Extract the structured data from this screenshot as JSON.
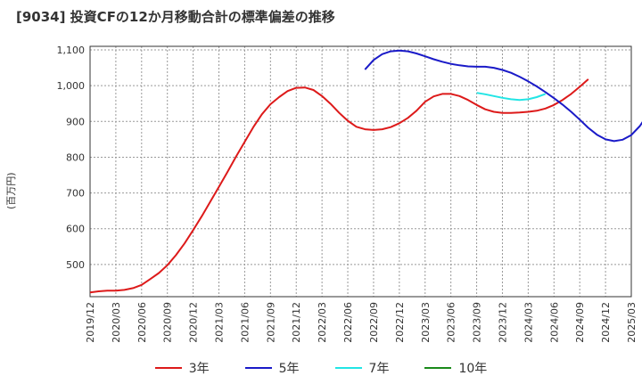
{
  "chart_data": {
    "type": "line",
    "title": "[9034]  投資CFの12か月移動合計の標準偏差の推移",
    "ylabel": "(百万円)",
    "xlabel": "",
    "ylim": [
      410,
      1110
    ],
    "yticks": [
      500,
      600,
      700,
      800,
      900,
      1000,
      1100
    ],
    "ytick_labels": [
      "500",
      "600",
      "700",
      "800",
      "900",
      "1,000",
      "1,100"
    ],
    "xticks": [
      "2019/12",
      "2020/03",
      "2020/06",
      "2020/09",
      "2020/12",
      "2021/03",
      "2021/06",
      "2021/09",
      "2021/12",
      "2022/03",
      "2022/06",
      "2022/09",
      "2022/12",
      "2023/03",
      "2023/06",
      "2023/09",
      "2023/12",
      "2024/03",
      "2024/06",
      "2024/09",
      "2024/12",
      "2025/03"
    ],
    "x_start": "2019/12",
    "grid": true,
    "legend_position": "bottom",
    "series": [
      {
        "name": "3年",
        "color": "#dd1a1a",
        "values": [
          422,
          425,
          427,
          427,
          429,
          434,
          443,
          459,
          476,
          498,
          526,
          559,
          596,
          635,
          676,
          717,
          759,
          802,
          843,
          884,
          920,
          948,
          968,
          985,
          994,
          995,
          988,
          971,
          949,
          924,
          902,
          885,
          878,
          876,
          878,
          884,
          895,
          910,
          930,
          955,
          970,
          977,
          977,
          971,
          960,
          946,
          934,
          927,
          924,
          924,
          925,
          927,
          930,
          936,
          946,
          960,
          977,
          997,
          1018
        ]
      },
      {
        "name": "5年",
        "color": "#1a1ac8",
        "start_index": 32,
        "values": [
          1045,
          1072,
          1088,
          1096,
          1098,
          1096,
          1090,
          1082,
          1074,
          1067,
          1061,
          1057,
          1054,
          1053,
          1053,
          1050,
          1044,
          1036,
          1025,
          1012,
          998,
          982,
          965,
          947,
          927,
          905,
          882,
          863,
          850,
          845,
          849,
          862,
          887,
          923
        ]
      },
      {
        "name": "7年",
        "color": "#22e5e5",
        "start_index": 45,
        "values": [
          980,
          976,
          971,
          966,
          962,
          960,
          962,
          968,
          977
        ]
      },
      {
        "name": "10年",
        "color": "#1a8a1a",
        "values": []
      }
    ]
  }
}
